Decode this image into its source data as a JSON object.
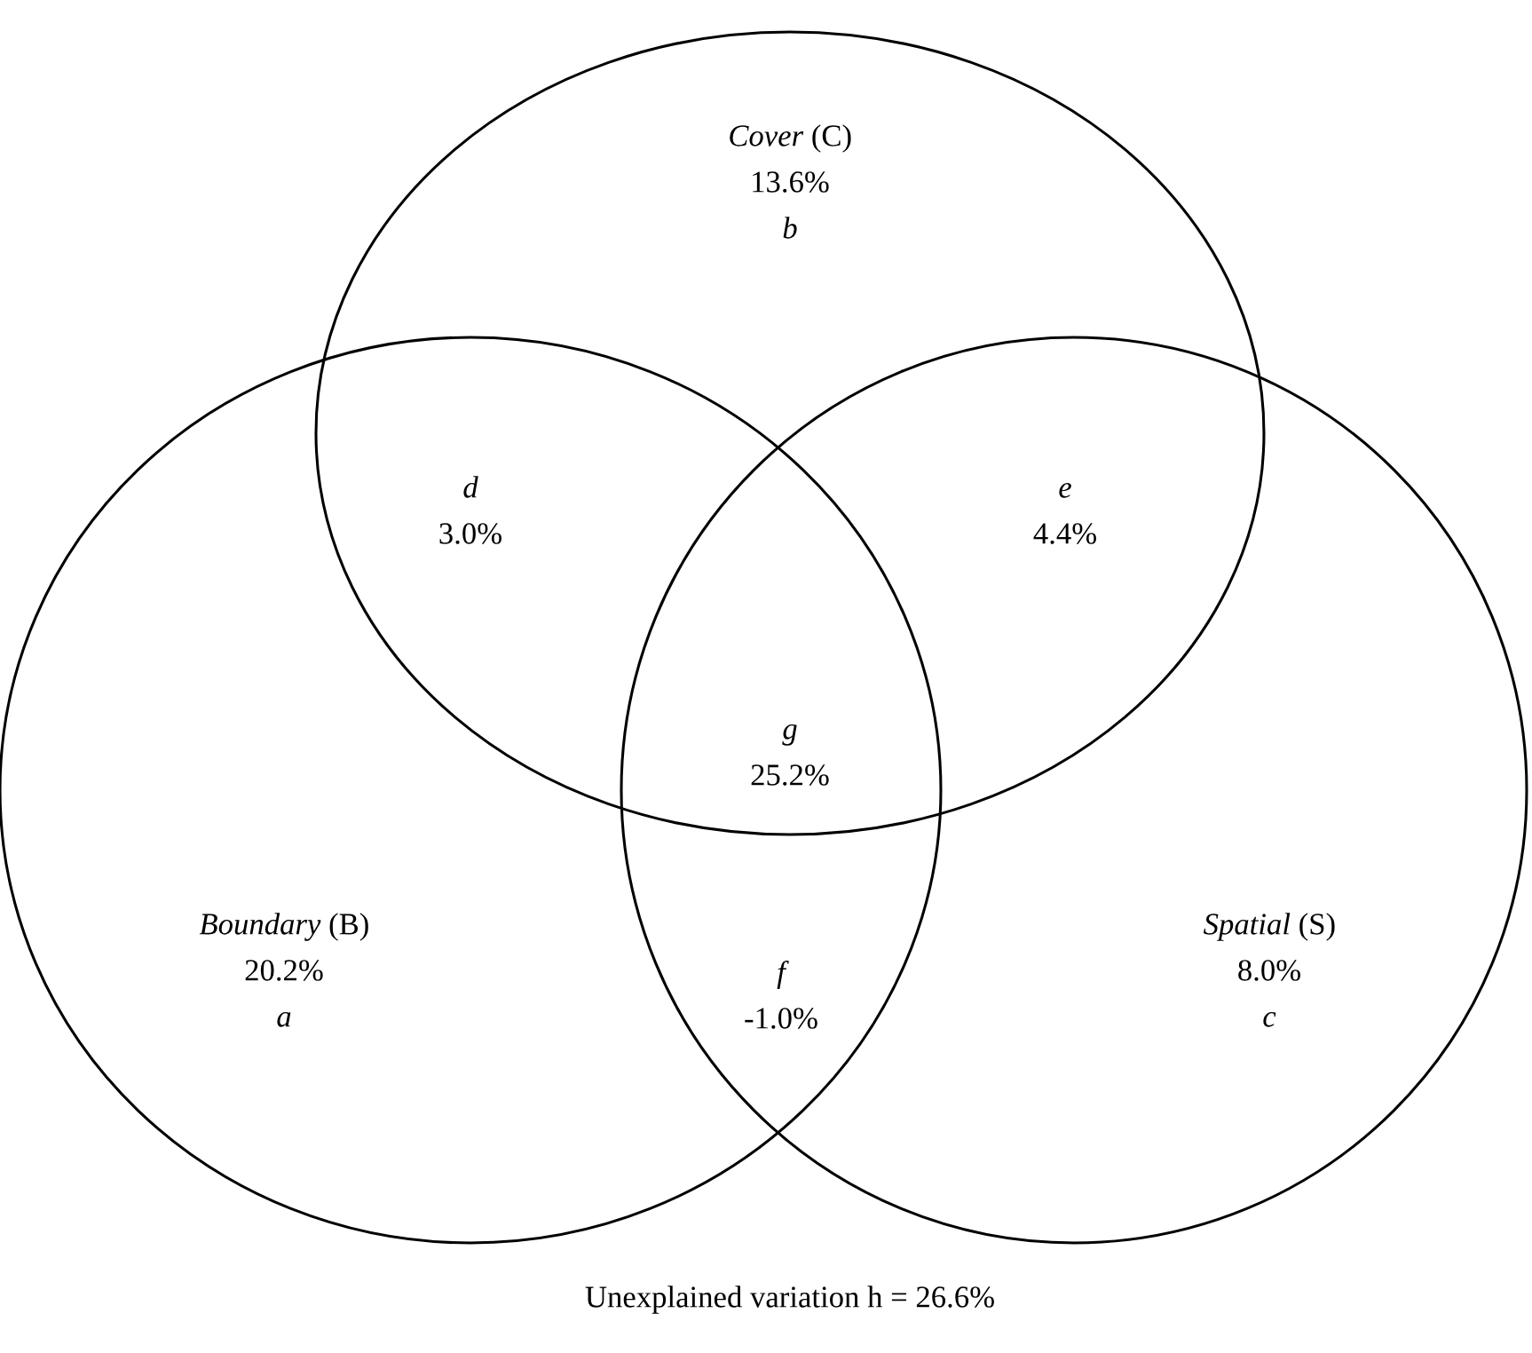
{
  "chart_data": {
    "type": "other",
    "categories": [
      "a",
      "b",
      "c",
      "d",
      "e",
      "f",
      "g"
    ],
    "values": [
      20.2,
      13.6,
      8.0,
      3.0,
      4.4,
      -1.0,
      25.2
    ],
    "value_labels": [
      "20.2%",
      "13.6%",
      "8.0%",
      "3.0%",
      "4.4%",
      "-1.0%",
      "25.2%"
    ],
    "annotations": [
      "Boundary (B)",
      "Cover (C)",
      "Spatial (S)",
      "Unexplained variation h = 26.6%"
    ]
  }
}
